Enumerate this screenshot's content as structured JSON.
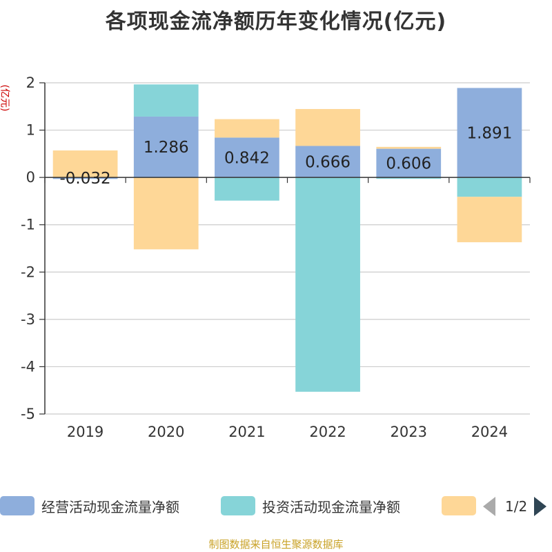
{
  "title": "各项现金流净额历年变化情况(亿元)",
  "unit_label": "(亿元)",
  "source_note": "制图数据来自恒生聚源数据库",
  "legend": {
    "items": [
      {
        "label": "经营活动现金流量净额",
        "color": "#8eaedc"
      },
      {
        "label": "投资活动现金流量净额",
        "color": "#86d4d8"
      },
      {
        "label": "",
        "color": "#fed797"
      }
    ],
    "page_text": "1/2"
  },
  "chart_data": {
    "type": "bar",
    "stacked": true,
    "title": "各项现金流净额历年变化情况(亿元)",
    "categories": [
      "2019",
      "2020",
      "2021",
      "2022",
      "2023",
      "2024"
    ],
    "ylim": [
      -5,
      2
    ],
    "yticks": [
      2,
      1,
      0,
      -1,
      -2,
      -3,
      -4,
      -5
    ],
    "grid": true,
    "legend_position": "bottom",
    "series": [
      {
        "name": "经营活动现金流量净额",
        "color": "#8eaedc",
        "values": [
          -0.032,
          1.286,
          0.842,
          0.666,
          0.606,
          1.891
        ],
        "data_labels": [
          "-0.032",
          "1.286",
          "0.842",
          "0.666",
          "0.606",
          "1.891"
        ]
      },
      {
        "name": "投资活动现金流量净额",
        "color": "#86d4d8",
        "values": [
          0.0,
          0.68,
          -0.49,
          -4.53,
          -0.03,
          -0.41
        ]
      },
      {
        "color": "#fed797",
        "values": [
          0.57,
          -1.52,
          0.39,
          0.78,
          0.04,
          -0.96
        ]
      }
    ]
  }
}
